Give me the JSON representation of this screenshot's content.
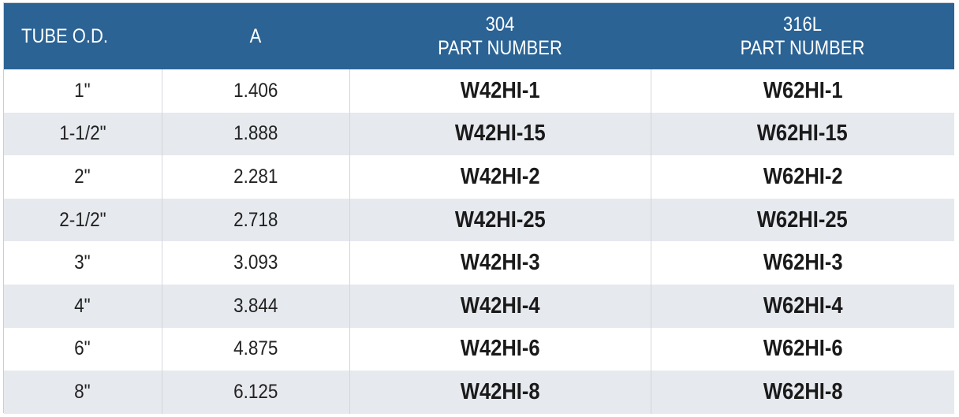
{
  "table": {
    "headers": {
      "tube_od": "TUBE O.D.",
      "a": "A",
      "col304_line1": "304",
      "col304_line2": "PART NUMBER",
      "col316_line1": "316L",
      "col316_line2": "PART NUMBER"
    },
    "rows": [
      {
        "tube_od": "1\"",
        "a": "1.406",
        "part_304": "W42HI-1",
        "part_316l": "W62HI-1"
      },
      {
        "tube_od": "1-1/2\"",
        "a": "1.888",
        "part_304": "W42HI-15",
        "part_316l": "W62HI-15"
      },
      {
        "tube_od": "2\"",
        "a": "2.281",
        "part_304": "W42HI-2",
        "part_316l": "W62HI-2"
      },
      {
        "tube_od": "2-1/2\"",
        "a": "2.718",
        "part_304": "W42HI-25",
        "part_316l": "W62HI-25"
      },
      {
        "tube_od": "3\"",
        "a": "3.093",
        "part_304": "W42HI-3",
        "part_316l": "W62HI-3"
      },
      {
        "tube_od": "4\"",
        "a": "3.844",
        "part_304": "W42HI-4",
        "part_316l": "W62HI-4"
      },
      {
        "tube_od": "6\"",
        "a": "4.875",
        "part_304": "W42HI-6",
        "part_316l": "W62HI-6"
      },
      {
        "tube_od": "8\"",
        "a": "6.125",
        "part_304": "W42HI-8",
        "part_316l": "W62HI-8"
      }
    ],
    "colors": {
      "header_bg": "#2b6395",
      "header_text": "#ffffff",
      "stripe_bg": "#e6e9ee"
    }
  }
}
